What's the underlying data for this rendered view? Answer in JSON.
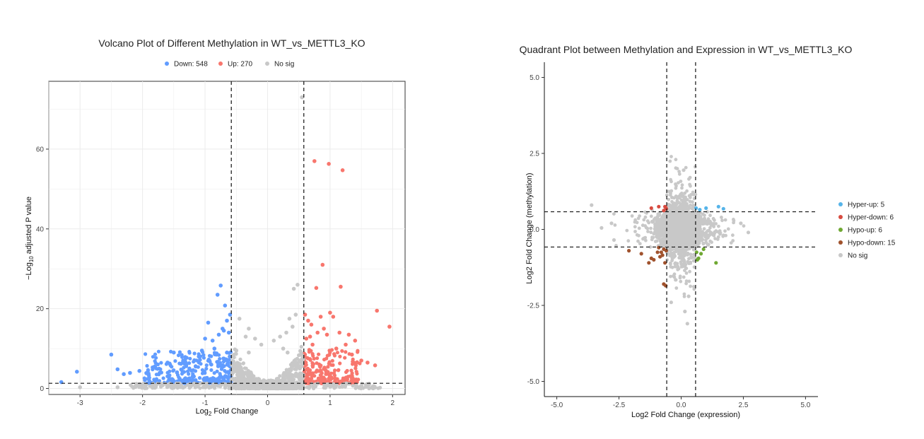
{
  "chart_data": [
    {
      "type": "scatter",
      "title": "Volcano Plot of Different Methylation in WT_vs_METTL3_KO",
      "xlabel_main": "Log",
      "xlabel_sub": "2",
      "xlabel_rest": " Fold Change",
      "ylabel_pre": "−Log",
      "ylabel_sub": "10",
      "ylabel_rest": " adjusted P value",
      "xlim": [
        -3.5,
        2.2
      ],
      "ylim": [
        -1.5,
        77
      ],
      "xticks": [
        -3,
        -2,
        -1,
        0,
        1,
        2
      ],
      "yticks": [
        0,
        20,
        40,
        60
      ],
      "grid": true,
      "legend_position": "top",
      "thresholds": {
        "x": [
          -0.58,
          0.58
        ],
        "y": 1.3
      },
      "colors": {
        "Down": "#619CFF",
        "Up": "#F8766D",
        "No sig": "#C8C8C8"
      },
      "legend": [
        {
          "label": "Down: 548",
          "color": "#619CFF"
        },
        {
          "label": "Up: 270",
          "color": "#F8766D"
        },
        {
          "label": "No sig",
          "color": "#C8C8C8"
        }
      ],
      "series": [
        {
          "name": "Down: 548",
          "color": "#619CFF",
          "points": [
            [
              -3.3,
              1.6
            ],
            [
              -3.05,
              4.2
            ],
            [
              -2.5,
              8.5
            ],
            [
              -2.4,
              4.8
            ],
            [
              -2.3,
              3.6
            ],
            [
              -2.2,
              3.9
            ],
            [
              -2.05,
              4.4
            ],
            [
              -1.9,
              3.3
            ],
            [
              -1.8,
              5.5
            ],
            [
              -1.7,
              4.0
            ],
            [
              -1.6,
              6.5
            ],
            [
              -1.5,
              9.0
            ],
            [
              -1.45,
              4.0
            ],
            [
              -1.35,
              7.0
            ],
            [
              -1.25,
              5.0
            ],
            [
              -1.2,
              3.0
            ],
            [
              -1.1,
              8.0
            ],
            [
              -1.05,
              9.5
            ],
            [
              -1.0,
              12.5
            ],
            [
              -0.95,
              16.5
            ],
            [
              -0.9,
              6.0
            ],
            [
              -0.85,
              10.0
            ],
            [
              -0.8,
              23.5
            ],
            [
              -0.75,
              25.8
            ],
            [
              -0.72,
              15.0
            ],
            [
              -0.7,
              14.5
            ],
            [
              -0.68,
              20.8
            ],
            [
              -0.65,
              17.0
            ],
            [
              -0.62,
              14.0
            ],
            [
              -0.6,
              18.5
            ],
            [
              -0.88,
              12.0
            ],
            [
              -0.78,
              13.5
            ],
            [
              -0.82,
              8.5
            ],
            [
              -1.3,
              6.0
            ],
            [
              -1.15,
              5.5
            ],
            [
              -0.65,
              9.0
            ],
            [
              -0.7,
              7.5
            ]
          ]
        },
        {
          "name": "Up: 270",
          "color": "#F8766D",
          "points": [
            [
              0.6,
              18.5
            ],
            [
              0.65,
              17.0
            ],
            [
              0.7,
              16.0
            ],
            [
              0.75,
              57.0
            ],
            [
              0.8,
              14.0
            ],
            [
              0.85,
              18.0
            ],
            [
              0.88,
              31.0
            ],
            [
              0.9,
              15.0
            ],
            [
              0.95,
              13.5
            ],
            [
              0.98,
              56.3
            ],
            [
              1.0,
              19.0
            ],
            [
              1.05,
              18.0
            ],
            [
              1.15,
              14.0
            ],
            [
              1.17,
              25.5
            ],
            [
              1.2,
              54.7
            ],
            [
              1.25,
              11.0
            ],
            [
              1.3,
              13.5
            ],
            [
              1.4,
              12.0
            ],
            [
              1.5,
              7.0
            ],
            [
              1.6,
              6.5
            ],
            [
              1.75,
              19.5
            ],
            [
              1.72,
              5.8
            ],
            [
              1.95,
              15.5
            ],
            [
              0.78,
              25.2
            ],
            [
              0.68,
              13.0
            ],
            [
              1.1,
              10.0
            ],
            [
              1.35,
              8.5
            ],
            [
              0.62,
              12.5
            ],
            [
              0.72,
              11.0
            ]
          ]
        },
        {
          "name": "No sig",
          "color": "#C8C8C8",
          "points": [
            [
              0.55,
              73.0
            ],
            [
              0.42,
              25.0
            ],
            [
              0.48,
              26.0
            ],
            [
              0.45,
              18.5
            ],
            [
              0.35,
              17.5
            ],
            [
              0.3,
              14.0
            ],
            [
              -0.45,
              17.5
            ],
            [
              -0.3,
              15.0
            ],
            [
              -0.2,
              12.5
            ],
            [
              0.1,
              12.0
            ],
            [
              0.2,
              13.0
            ],
            [
              -0.1,
              11.0
            ],
            [
              0.4,
              15.5
            ],
            [
              -0.35,
              13.0
            ],
            [
              0.25,
              10.0
            ],
            [
              -0.5,
              9.5
            ],
            [
              -1.6,
              0.4
            ],
            [
              -2.4,
              0.3
            ],
            [
              -2.0,
              0.2
            ],
            [
              -3.0,
              0.3
            ],
            [
              -1.0,
              0.5
            ],
            [
              -0.3,
              9.0
            ],
            [
              0.32,
              9.0
            ]
          ]
        }
      ],
      "clouds": [
        {
          "series": "Down: 548",
          "x": [
            -2.2,
            -0.58
          ],
          "count": 360,
          "ymax_scale": 1.0,
          "shape": "down"
        },
        {
          "series": "Up: 270",
          "x": [
            0.58,
            1.65
          ],
          "count": 260,
          "shape": "up"
        },
        {
          "series": "No sig",
          "x": [
            -0.58,
            0.58
          ],
          "count": 700,
          "shape": "mid"
        },
        {
          "series": "No sig",
          "x": [
            -2.2,
            1.8
          ],
          "count": 300,
          "shape": "low"
        }
      ]
    },
    {
      "type": "scatter",
      "title": "Quadrant Plot between Methylation and Expression in WT_vs_METTL3_KO",
      "xlabel": "Log2 Fold Change (expression)",
      "ylabel": "Log2 Fold Change (methylation)",
      "xlim": [
        -5.5,
        5.5
      ],
      "ylim": [
        -5.5,
        5.5
      ],
      "xticks": [
        -5.0,
        -2.5,
        0.0,
        2.5,
        5.0
      ],
      "xtick_labels": [
        "-5.0",
        "-2.5",
        "0.0",
        "2.5",
        "5.0"
      ],
      "yticks": [
        -5.0,
        -2.5,
        0.0,
        2.5,
        5.0
      ],
      "ytick_labels": [
        "-5.0",
        "-2.5",
        "0.0",
        "2.5",
        "5.0"
      ],
      "grid": false,
      "legend_position": "right",
      "thresholds": {
        "x": [
          -0.58,
          0.58
        ],
        "y": [
          -0.58,
          0.58
        ]
      },
      "legend": [
        {
          "label": "Hyper-up: 5",
          "color": "#56B4E9"
        },
        {
          "label": "Hyper-down: 6",
          "color": "#D84B40"
        },
        {
          "label": "Hypo-up: 6",
          "color": "#6FA832"
        },
        {
          "label": "Hypo-down: 15",
          "color": "#A0522D"
        },
        {
          "label": "No sig",
          "color": "#C8C8C8"
        }
      ],
      "series": [
        {
          "name": "Hyper-up: 5",
          "color": "#56B4E9",
          "points": [
            [
              0.6,
              0.7
            ],
            [
              0.75,
              0.65
            ],
            [
              1.0,
              0.7
            ],
            [
              1.5,
              0.75
            ],
            [
              1.7,
              0.68
            ]
          ]
        },
        {
          "name": "Hyper-down: 6",
          "color": "#D84B40",
          "points": [
            [
              -1.2,
              0.7
            ],
            [
              -0.9,
              0.75
            ],
            [
              -0.65,
              0.75
            ],
            [
              -0.7,
              0.62
            ],
            [
              -0.6,
              0.68
            ],
            [
              -0.62,
              0.72
            ]
          ]
        },
        {
          "name": "Hypo-up: 6",
          "color": "#6FA832",
          "points": [
            [
              0.62,
              -0.75
            ],
            [
              0.7,
              -0.95
            ],
            [
              0.65,
              -1.0
            ],
            [
              0.8,
              -0.8
            ],
            [
              0.9,
              -0.65
            ],
            [
              1.4,
              -1.1
            ]
          ]
        },
        {
          "name": "Hypo-down: 15",
          "color": "#A0522D",
          "points": [
            [
              -2.1,
              -0.7
            ],
            [
              -1.6,
              -0.8
            ],
            [
              -1.3,
              -1.1
            ],
            [
              -1.1,
              -1.0
            ],
            [
              -0.9,
              -0.6
            ],
            [
              -0.85,
              -0.9
            ],
            [
              -0.8,
              -0.75
            ],
            [
              -0.7,
              -0.65
            ],
            [
              -0.65,
              -1.1
            ],
            [
              -0.6,
              -0.7
            ],
            [
              -0.75,
              -0.85
            ],
            [
              -0.62,
              -1.85
            ],
            [
              -0.7,
              -1.8
            ],
            [
              -1.2,
              -0.95
            ],
            [
              -0.95,
              -0.75
            ]
          ]
        },
        {
          "name": "No sig",
          "color": "#C8C8C8",
          "points": [
            [
              -3.6,
              0.8
            ],
            [
              -3.2,
              0.05
            ],
            [
              -2.7,
              -0.35
            ],
            [
              2.7,
              -0.1
            ],
            [
              0.1,
              1.95
            ],
            [
              0.15,
              -2.7
            ],
            [
              0.25,
              -3.1
            ],
            [
              -0.4,
              -2.4
            ],
            [
              0.3,
              -2.2
            ],
            [
              -2.8,
              0.2
            ],
            [
              2.4,
              0.2
            ]
          ]
        }
      ],
      "clouds": [
        {
          "series": "No sig",
          "count": 2200,
          "sx": 0.55,
          "sy": 0.55
        }
      ]
    }
  ]
}
